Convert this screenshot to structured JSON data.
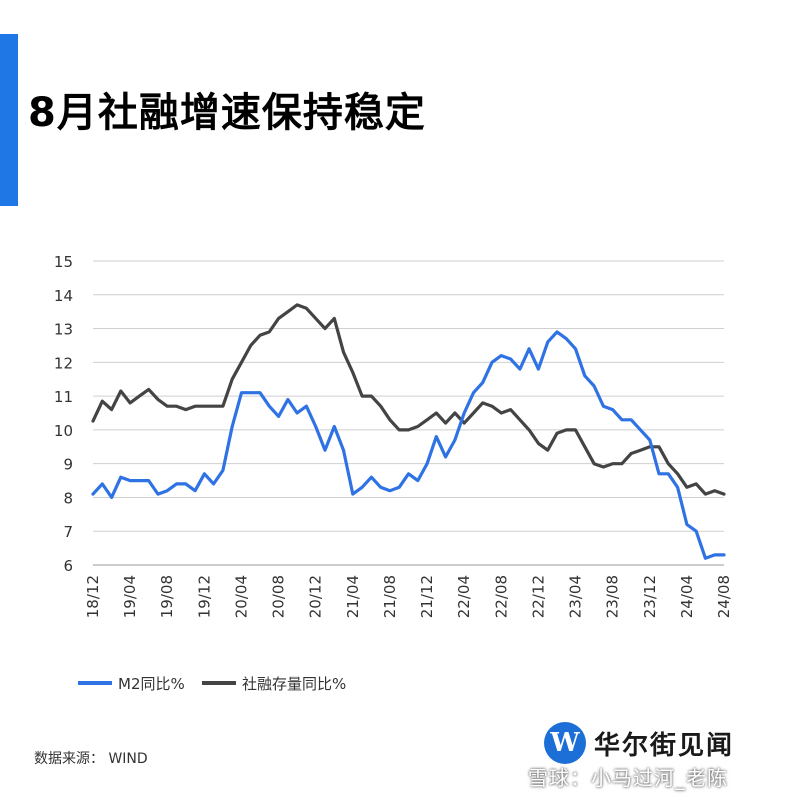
{
  "title": "8月社融增速保持稳定",
  "colors": {
    "accent": "#1f77e6",
    "m2": "#2f72e4",
    "tsf": "#444444",
    "grid": "#cfcfcf",
    "axis_text": "#333333"
  },
  "source_text": "数据来源：   WIND",
  "logo": {
    "mark": "W",
    "text": "华尔街见闻"
  },
  "watermark": "雪球：小马过河_老陈",
  "chart_data": {
    "type": "line",
    "y_ticks": [
      15,
      14,
      13,
      12,
      11,
      10,
      9,
      8,
      7,
      6
    ],
    "ylim": [
      6,
      15
    ],
    "grid": true,
    "legend_position": "bottom-left",
    "x_tick_labels": [
      "18/12",
      "19/04",
      "19/08",
      "19/12",
      "20/04",
      "20/08",
      "20/12",
      "21/04",
      "21/08",
      "21/12",
      "22/04",
      "22/08",
      "22/12",
      "23/04",
      "23/08",
      "23/12",
      "24/04",
      "24/08"
    ],
    "x_tick_indices": [
      0,
      4,
      8,
      12,
      16,
      20,
      24,
      28,
      32,
      36,
      40,
      44,
      48,
      52,
      56,
      60,
      64,
      68
    ],
    "series": [
      {
        "name": "M2同比%",
        "values": [
          8.1,
          8.4,
          8.0,
          8.6,
          8.5,
          8.5,
          8.5,
          8.1,
          8.2,
          8.4,
          8.4,
          8.2,
          8.7,
          8.4,
          8.8,
          10.1,
          11.1,
          11.1,
          11.1,
          10.7,
          10.4,
          10.9,
          10.5,
          10.7,
          10.1,
          9.4,
          10.1,
          9.4,
          8.1,
          8.3,
          8.6,
          8.3,
          8.2,
          8.3,
          8.7,
          8.5,
          9.0,
          9.8,
          9.2,
          9.7,
          10.5,
          11.1,
          11.4,
          12.0,
          12.2,
          12.1,
          11.8,
          12.4,
          11.8,
          12.6,
          12.9,
          12.7,
          12.4,
          11.6,
          11.3,
          10.7,
          10.6,
          10.3,
          10.3,
          10.0,
          9.7,
          8.7,
          8.7,
          8.3,
          7.2,
          7.0,
          6.2,
          6.3,
          6.3
        ]
      },
      {
        "name": "社融存量同比%",
        "values": [
          10.26,
          10.85,
          10.6,
          11.15,
          10.8,
          11.0,
          11.2,
          10.9,
          10.7,
          10.7,
          10.6,
          10.7,
          10.7,
          10.7,
          10.7,
          11.5,
          12.0,
          12.5,
          12.8,
          12.9,
          13.3,
          13.5,
          13.7,
          13.6,
          13.3,
          13.0,
          13.3,
          12.3,
          11.7,
          11.0,
          11.0,
          10.7,
          10.3,
          10.0,
          10.0,
          10.1,
          10.3,
          10.5,
          10.2,
          10.5,
          10.2,
          10.5,
          10.8,
          10.7,
          10.5,
          10.6,
          10.3,
          10.0,
          9.6,
          9.4,
          9.9,
          10.0,
          10.0,
          9.5,
          9.0,
          8.9,
          9.0,
          9.0,
          9.3,
          9.4,
          9.5,
          9.5,
          9.0,
          8.7,
          8.3,
          8.4,
          8.1,
          8.2,
          8.1
        ]
      }
    ]
  }
}
